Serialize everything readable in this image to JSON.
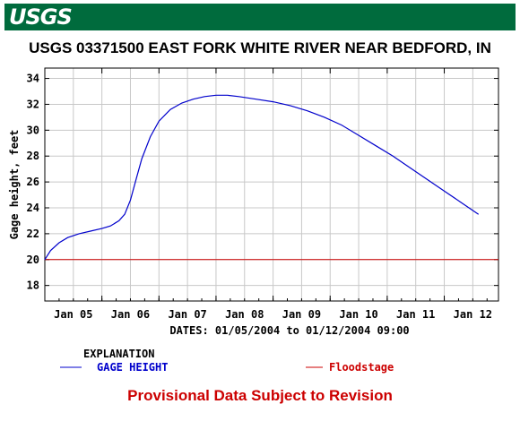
{
  "header": {
    "logo_text": "USGS",
    "banner_color": "#006b3d"
  },
  "chart_data": {
    "type": "line",
    "title": "USGS 03371500 EAST FORK WHITE RIVER NEAR BEDFORD, IN",
    "ylabel": "Gage height, feet",
    "xlabel": "DATES: 01/05/2004 to 01/12/2004 09:00",
    "ylim": [
      16.8,
      34.8
    ],
    "yticks": [
      18,
      20,
      22,
      24,
      26,
      28,
      30,
      32,
      34
    ],
    "xlim": [
      4.5,
      12.45
    ],
    "xticks": [
      5,
      6,
      7,
      8,
      9,
      10,
      11,
      12
    ],
    "xtick_labels": [
      "Jan 05",
      "Jan 06",
      "Jan 07",
      "Jan 08",
      "Jan 09",
      "Jan 10",
      "Jan 11",
      "Jan 12"
    ],
    "grid": true,
    "series": [
      {
        "name": "GAGE HEIGHT",
        "color": "#0000cc",
        "points": [
          [
            4.5,
            20.0
          ],
          [
            4.6,
            20.7
          ],
          [
            4.75,
            21.3
          ],
          [
            4.9,
            21.7
          ],
          [
            5.1,
            22.0
          ],
          [
            5.3,
            22.2
          ],
          [
            5.5,
            22.4
          ],
          [
            5.65,
            22.6
          ],
          [
            5.8,
            23.0
          ],
          [
            5.9,
            23.5
          ],
          [
            6.0,
            24.6
          ],
          [
            6.1,
            26.2
          ],
          [
            6.2,
            27.8
          ],
          [
            6.35,
            29.5
          ],
          [
            6.5,
            30.7
          ],
          [
            6.7,
            31.6
          ],
          [
            6.9,
            32.1
          ],
          [
            7.1,
            32.4
          ],
          [
            7.3,
            32.6
          ],
          [
            7.5,
            32.7
          ],
          [
            7.7,
            32.7
          ],
          [
            7.9,
            32.6
          ],
          [
            8.2,
            32.4
          ],
          [
            8.5,
            32.2
          ],
          [
            8.8,
            31.9
          ],
          [
            9.1,
            31.5
          ],
          [
            9.4,
            31.0
          ],
          [
            9.7,
            30.4
          ],
          [
            10.0,
            29.6
          ],
          [
            10.3,
            28.8
          ],
          [
            10.6,
            28.0
          ],
          [
            10.9,
            27.1
          ],
          [
            11.2,
            26.2
          ],
          [
            11.5,
            25.3
          ],
          [
            11.8,
            24.4
          ],
          [
            12.1,
            23.5
          ]
        ]
      },
      {
        "name": "Floodstage",
        "color": "#cc0000",
        "constant": 20.0
      }
    ],
    "legend": {
      "heading": "EXPLANATION",
      "position": "bottom"
    }
  },
  "footer": {
    "provisional": "Provisional Data Subject to Revision"
  }
}
